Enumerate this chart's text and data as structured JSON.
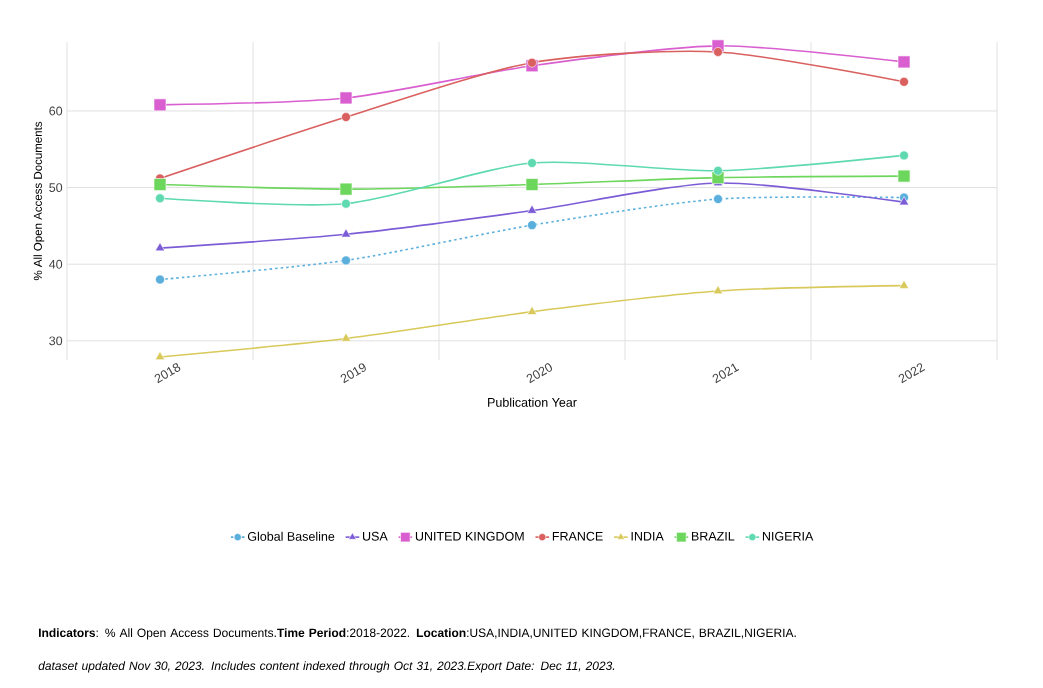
{
  "chart_data": {
    "type": "line",
    "xlabel": "Publication Year",
    "ylabel": "% All Open Access Documents",
    "categories": [
      "2018",
      "2019",
      "2020",
      "2021",
      "2022"
    ],
    "ylim": [
      27.5,
      69
    ],
    "yticks": [
      30,
      40,
      50,
      60
    ],
    "grid": true,
    "legend": "bottom",
    "series": [
      {
        "name": "Global Baseline",
        "color": "#5aafdd",
        "marker": "circle",
        "line_style": "dotted",
        "values": [
          38.0,
          40.5,
          45.1,
          48.5,
          48.7
        ]
      },
      {
        "name": "USA",
        "color": "#7b5cd6",
        "marker": "triangle",
        "line_style": "solid",
        "values": [
          42.1,
          43.9,
          47.0,
          50.6,
          48.1
        ]
      },
      {
        "name": "UNITED KINGDOM",
        "color": "#d95fd0",
        "marker": "square",
        "line_style": "solid",
        "values": [
          60.8,
          61.7,
          65.9,
          68.5,
          66.4
        ]
      },
      {
        "name": "FRANCE",
        "color": "#d9605e",
        "marker": "circle",
        "line_style": "solid",
        "values": [
          51.2,
          59.2,
          66.3,
          67.7,
          63.8
        ]
      },
      {
        "name": "INDIA",
        "color": "#d9c95a",
        "marker": "triangle",
        "line_style": "solid",
        "values": [
          27.9,
          30.3,
          33.8,
          36.5,
          37.2
        ]
      },
      {
        "name": "BRAZIL",
        "color": "#6dd65c",
        "marker": "square",
        "line_style": "solid",
        "values": [
          50.4,
          49.8,
          50.4,
          51.3,
          51.5
        ]
      },
      {
        "name": "NIGERIA",
        "color": "#5ed9b0",
        "marker": "circle",
        "line_style": "solid",
        "values": [
          48.6,
          47.9,
          53.2,
          52.2,
          54.2
        ]
      }
    ],
    "annotations": [
      "**Indicators**: % All Open Access Documents.**Time Period**:2018-2022. **Location**:USA,INDIA,UNITED KINGDOM,FRANCE, BRAZIL,NIGERIA.",
      "dataset updated Nov 30, 2023. Includes content indexed through Oct 31, 2023.Export Date: Dec 11, 2023."
    ]
  }
}
